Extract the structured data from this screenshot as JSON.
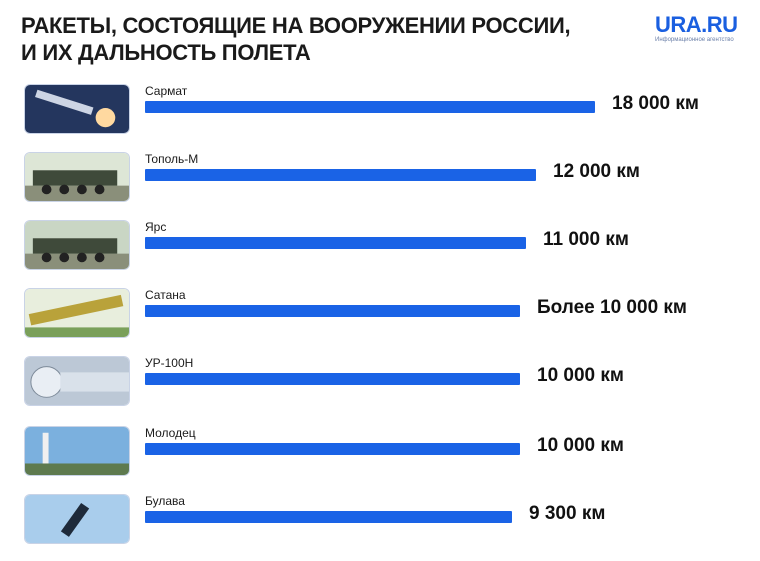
{
  "header": {
    "title_line1": "РАКЕТЫ, СОСТОЯЩИЕ НА ВООРУЖЕНИИ РОССИИ,",
    "title_line2": "И ИХ ДАЛЬНОСТЬ ПОЛЕТА",
    "brand": "URA.RU",
    "brand_sub": "Информационное агентство"
  },
  "colors": {
    "bar": "#1a63e6",
    "brand": "#1a5fe0"
  },
  "chart_data": {
    "type": "bar",
    "orientation": "horizontal",
    "title": "РАКЕТЫ, СОСТОЯЩИЕ НА ВООРУЖЕНИИ РОССИИ, И ИХ ДАЛЬНОСТЬ ПОЛЕТА",
    "unit": "км",
    "categories": [
      "Сармат",
      "Тополь-М",
      "Ярс",
      "Сатана",
      "УР-100Н",
      "Молодец",
      "Булава"
    ],
    "values": [
      18000,
      12000,
      11000,
      10000,
      10000,
      10000,
      9300
    ],
    "value_labels": [
      "18 000 км",
      "12 000 км",
      "11 000 км",
      "Более 10 000 км",
      "10 000 км",
      "10 000 км",
      "9 300 км"
    ],
    "icons": [
      "sarmat-missile-photo",
      "topol-m-launcher-photo",
      "yars-launcher-photo",
      "satana-missile-photo",
      "ur-100n-missile-photo",
      "molodets-launch-photo",
      "bulava-launch-photo"
    ],
    "xlim": [
      0,
      18000
    ]
  }
}
